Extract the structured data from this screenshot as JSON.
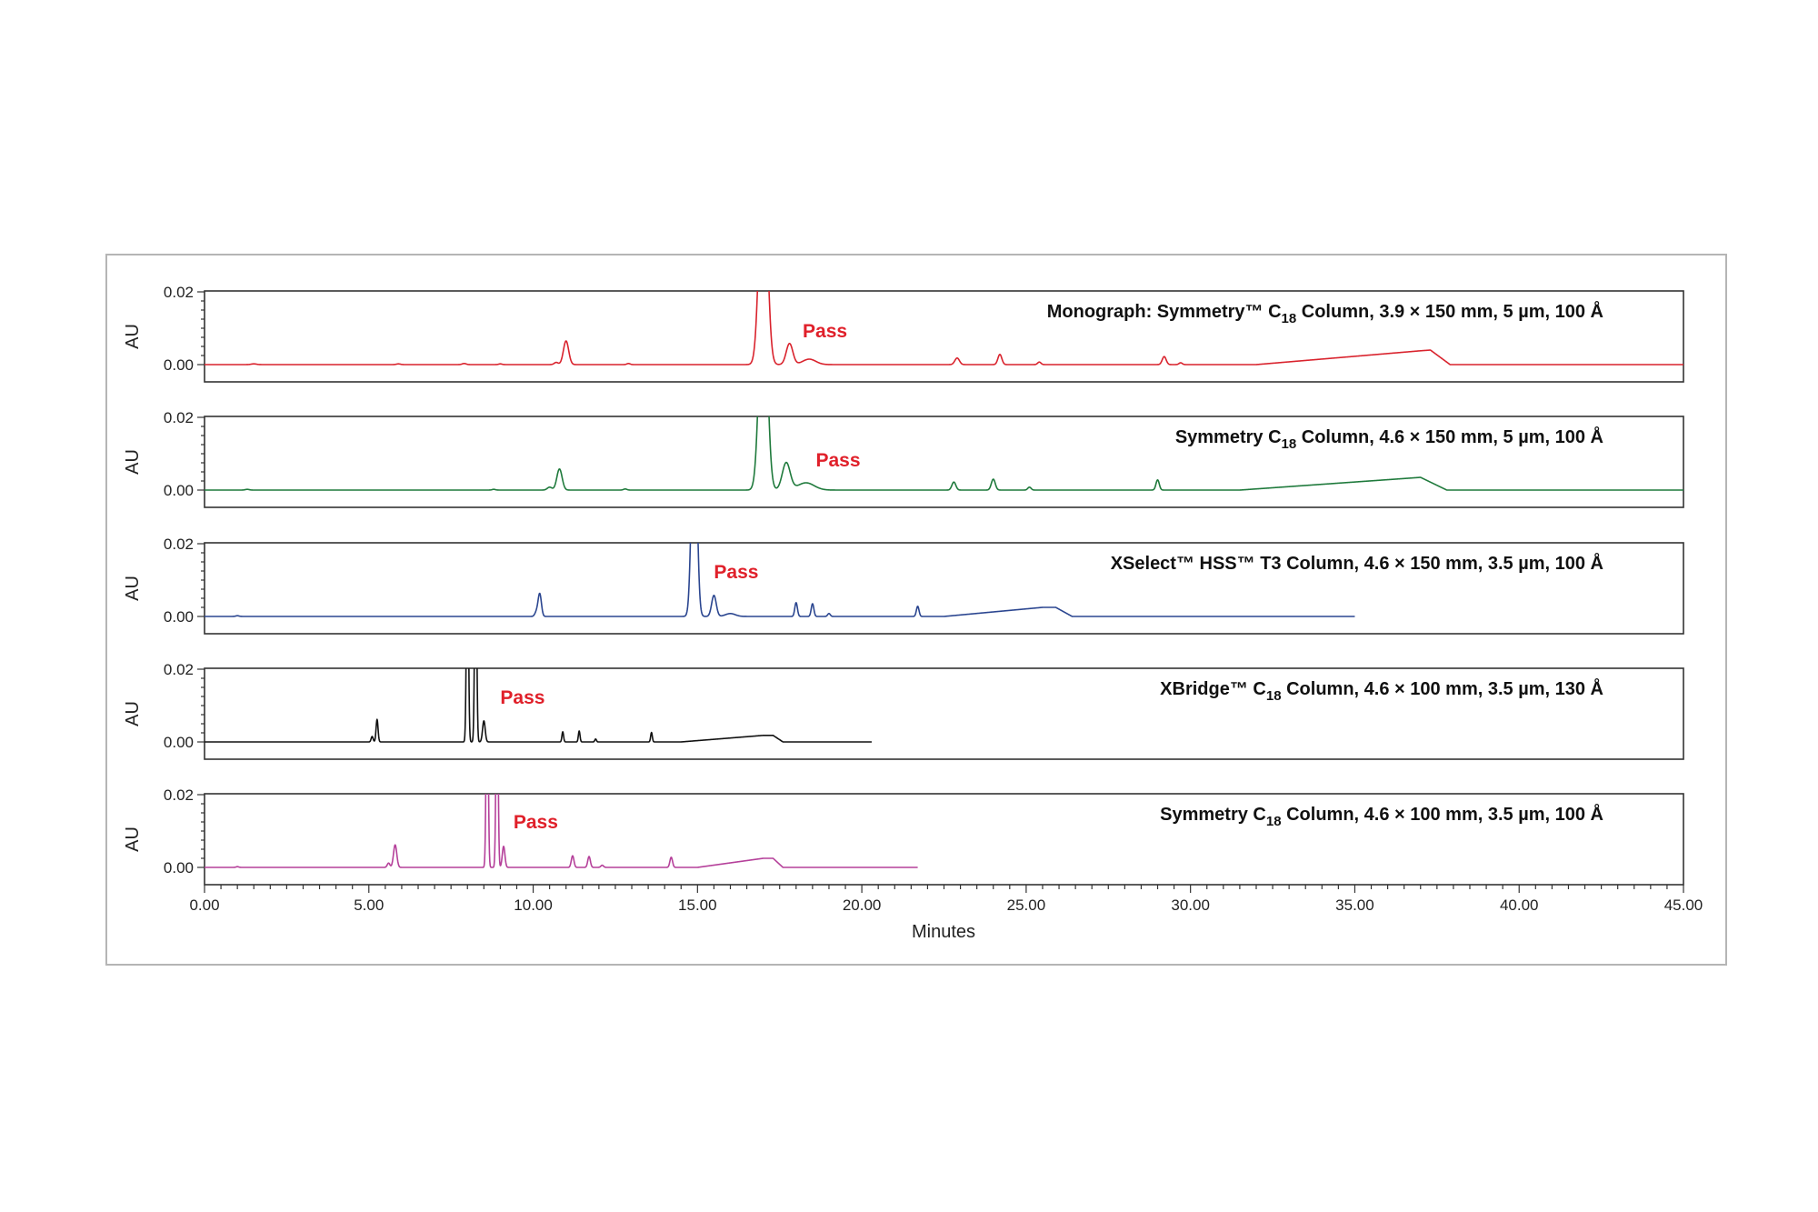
{
  "chart_data": {
    "type": "line",
    "title": "",
    "xlabel": "Minutes",
    "xlim": [
      0,
      45
    ],
    "x_ticks": [
      "0.00",
      "5.00",
      "10.00",
      "15.00",
      "20.00",
      "25.00",
      "30.00",
      "35.00",
      "40.00",
      "45.00"
    ],
    "ylabel": "AU",
    "ylim": [
      0,
      0.02
    ],
    "y_ticks": [
      "0.00",
      "0.02"
    ],
    "grid": false,
    "series": [
      {
        "label_prefix": "Monograph: Symmetry™ C",
        "label_sub": "18",
        "label_suffix": " Column, 3.9 × 150 mm, 5 µm, 100 Å",
        "annotation": "Pass",
        "annotation_x": 18.2,
        "annotation_y": 0.0075,
        "color": "#d9232d",
        "x_end": 45,
        "peaks": [
          [
            1.5,
            0.0002,
            0.08
          ],
          [
            5.9,
            0.0002,
            0.06
          ],
          [
            7.9,
            0.0003,
            0.06
          ],
          [
            9.0,
            0.0002,
            0.05
          ],
          [
            10.7,
            0.0006,
            0.06
          ],
          [
            11.0,
            0.0065,
            0.08
          ],
          [
            12.9,
            0.0003,
            0.05
          ],
          [
            17.0,
            0.06,
            0.12
          ],
          [
            17.8,
            0.0058,
            0.1
          ],
          [
            18.4,
            0.0015,
            0.2
          ],
          [
            22.9,
            0.0018,
            0.07
          ],
          [
            24.2,
            0.0028,
            0.06
          ],
          [
            25.4,
            0.0007,
            0.05
          ],
          [
            29.2,
            0.0022,
            0.06
          ],
          [
            29.7,
            0.0005,
            0.05
          ]
        ],
        "ramp": [
          [
            32.0,
            0.0
          ],
          [
            37.0,
            0.0038
          ],
          [
            37.3,
            0.004
          ],
          [
            37.9,
            0.0
          ]
        ]
      },
      {
        "label_prefix": "Symmetry C",
        "label_sub": "18",
        "label_suffix": " Column, 4.6 × 150 mm, 5 µm, 100 Å",
        "annotation": "Pass",
        "annotation_x": 18.6,
        "annotation_y": 0.0065,
        "color": "#1f7a3c",
        "x_end": 45,
        "peaks": [
          [
            1.3,
            0.0002,
            0.06
          ],
          [
            8.8,
            0.0002,
            0.05
          ],
          [
            10.5,
            0.0008,
            0.07
          ],
          [
            10.8,
            0.0058,
            0.08
          ],
          [
            12.8,
            0.0003,
            0.05
          ],
          [
            17.0,
            0.06,
            0.12
          ],
          [
            17.7,
            0.0075,
            0.12
          ],
          [
            18.3,
            0.002,
            0.25
          ],
          [
            22.8,
            0.0022,
            0.06
          ],
          [
            24.0,
            0.003,
            0.06
          ],
          [
            25.1,
            0.0008,
            0.05
          ],
          [
            29.0,
            0.0028,
            0.05
          ]
        ],
        "ramp": [
          [
            31.5,
            0.0
          ],
          [
            36.7,
            0.0033
          ],
          [
            37.0,
            0.0035
          ],
          [
            37.8,
            0.0
          ]
        ]
      },
      {
        "label_prefix": "XSelect™ HSS™ T3 Column, 4.6 × 150 mm, 3.5 µm, 100 Å",
        "label_sub": "",
        "label_suffix": "",
        "annotation": "Pass",
        "annotation_x": 15.5,
        "annotation_y": 0.0105,
        "color": "#2b4690",
        "x_end": 35,
        "peaks": [
          [
            1.0,
            0.0002,
            0.05
          ],
          [
            10.1,
            0.0012,
            0.05
          ],
          [
            10.2,
            0.0062,
            0.05
          ],
          [
            14.9,
            0.06,
            0.08
          ],
          [
            15.5,
            0.0058,
            0.07
          ],
          [
            16.0,
            0.0008,
            0.15
          ],
          [
            18.0,
            0.0038,
            0.04
          ],
          [
            18.5,
            0.0035,
            0.04
          ],
          [
            19.0,
            0.0008,
            0.04
          ],
          [
            21.7,
            0.0028,
            0.04
          ]
        ],
        "ramp": [
          [
            22.5,
            0.0
          ],
          [
            25.5,
            0.0025
          ],
          [
            25.9,
            0.0025
          ],
          [
            26.4,
            0.0
          ]
        ]
      },
      {
        "label_prefix": "XBridge™ C",
        "label_sub": "18",
        "label_suffix": " Column, 4.6 × 100 mm, 3.5 µm, 130 Å",
        "annotation": "Pass",
        "annotation_x": 9.0,
        "annotation_y": 0.0105,
        "color": "#111111",
        "x_end": 20.3,
        "peaks": [
          [
            5.1,
            0.0015,
            0.03
          ],
          [
            5.25,
            0.0062,
            0.03
          ],
          [
            8.0,
            0.06,
            0.03
          ],
          [
            8.25,
            0.06,
            0.03
          ],
          [
            8.5,
            0.0058,
            0.04
          ],
          [
            10.9,
            0.0028,
            0.025
          ],
          [
            11.4,
            0.003,
            0.025
          ],
          [
            11.9,
            0.0008,
            0.025
          ],
          [
            13.6,
            0.0026,
            0.025
          ]
        ],
        "ramp": [
          [
            14.5,
            0.0
          ],
          [
            17.0,
            0.0018
          ],
          [
            17.3,
            0.0018
          ],
          [
            17.6,
            0.0
          ]
        ]
      },
      {
        "label_prefix": "Symmetry C",
        "label_sub": "18",
        "label_suffix": " Column, 4.6 × 100 mm, 3.5 µm, 100 Å",
        "annotation": "Pass",
        "annotation_x": 9.4,
        "annotation_y": 0.0108,
        "color": "#b5409a",
        "x_end": 21.7,
        "peaks": [
          [
            1.0,
            0.0002,
            0.04
          ],
          [
            5.6,
            0.0012,
            0.04
          ],
          [
            5.8,
            0.0062,
            0.05
          ],
          [
            8.6,
            0.06,
            0.03
          ],
          [
            8.9,
            0.06,
            0.03
          ],
          [
            9.1,
            0.0058,
            0.04
          ],
          [
            11.2,
            0.0032,
            0.04
          ],
          [
            11.7,
            0.003,
            0.04
          ],
          [
            12.1,
            0.0006,
            0.04
          ],
          [
            14.2,
            0.0028,
            0.04
          ]
        ],
        "ramp": [
          [
            15.0,
            0.0
          ],
          [
            17.0,
            0.0025
          ],
          [
            17.3,
            0.0025
          ],
          [
            17.6,
            0.0
          ]
        ]
      }
    ]
  }
}
